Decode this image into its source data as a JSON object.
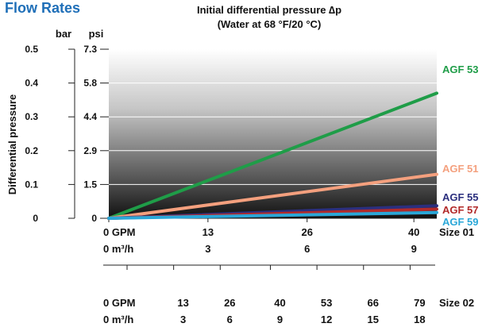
{
  "page_title": "Flow Rates",
  "chart_data": {
    "type": "line",
    "title": "Initial differential pressure ∆p",
    "subtitle": "(Water at 68 °F/20 °C)",
    "ylabel": "Differential pressure",
    "y_unit_bar": "bar",
    "y_unit_psi": "psi",
    "y_ticks_bar": [
      "0",
      "0.1",
      "0.2",
      "0.3",
      "0.4",
      "0.5"
    ],
    "y_ticks_psi": [
      "0",
      "1.5",
      "2.9",
      "4.4",
      "5.8",
      "7.3"
    ],
    "ylim": [
      0,
      0.5
    ],
    "xlim": [
      0,
      43
    ],
    "x_axis_size01": {
      "label": "Size 01",
      "gpm_values": [
        0,
        13,
        26,
        40
      ],
      "gpm_labels": [
        "0 GPM",
        "13",
        "26",
        "40"
      ],
      "m3h_labels": [
        "0 m³/h",
        "3",
        "6",
        "9"
      ]
    },
    "x_axis_size02": {
      "label": "Size 02",
      "gpm_values": [
        0,
        13,
        26,
        40,
        53,
        66,
        79
      ],
      "gpm_labels": [
        "0 GPM",
        "13",
        "26",
        "40",
        "53",
        "66",
        "79"
      ],
      "m3h_labels": [
        "0 m³/h",
        "3",
        "6",
        "9",
        "12",
        "15",
        "18"
      ],
      "max": 86
    },
    "grid": "horizontal",
    "series": [
      {
        "name": "AGF 53",
        "color": "#1f9d48",
        "x": [
          0,
          43
        ],
        "y": [
          0,
          0.37
        ]
      },
      {
        "name": "AGF 51",
        "color": "#f4a07e",
        "x": [
          0,
          43
        ],
        "y": [
          0,
          0.13
        ]
      },
      {
        "name": "AGF 55",
        "color": "#2b2f7e",
        "x": [
          0,
          43
        ],
        "y": [
          0,
          0.037
        ]
      },
      {
        "name": "AGF 57",
        "color": "#b22a2a",
        "x": [
          0,
          43
        ],
        "y": [
          0,
          0.027
        ]
      },
      {
        "name": "AGF 59",
        "color": "#2aa7d8",
        "x": [
          0,
          43
        ],
        "y": [
          0,
          0.017
        ]
      }
    ]
  }
}
